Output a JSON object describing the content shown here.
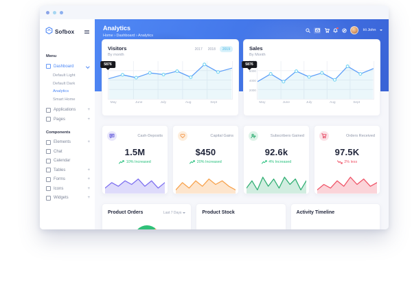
{
  "window": {
    "traffic_dots": [
      "#8aa4e8",
      "#a5d6f2",
      "#8db0ef"
    ]
  },
  "sidebar": {
    "logo_text": "Sofbox",
    "menu_label": "Menu",
    "components_label": "Components",
    "menu_items": [
      {
        "label": "Dashboard",
        "icon": "home-icon",
        "active": true,
        "expanded": true,
        "children": [
          {
            "label": "Default Light"
          },
          {
            "label": "Default Dark"
          },
          {
            "label": "Analytics",
            "active": true
          },
          {
            "label": "Smart Home"
          }
        ]
      },
      {
        "label": "Applications",
        "icon": "grid-icon",
        "plus": "+"
      },
      {
        "label": "Pages",
        "icon": "file-icon",
        "plus": "+"
      }
    ],
    "component_items": [
      {
        "label": "Elements",
        "icon": "box-icon",
        "plus": "+"
      },
      {
        "label": "Chat",
        "icon": "chat-icon"
      },
      {
        "label": "Calendar",
        "icon": "calendar-icon"
      },
      {
        "label": "Tables",
        "icon": "table-icon",
        "plus": "+"
      },
      {
        "label": "Forms",
        "icon": "form-icon",
        "plus": "+"
      },
      {
        "label": "Icons",
        "icon": "circle-icon",
        "plus": "+"
      },
      {
        "label": "Widgets",
        "icon": "widgets-icon",
        "plus": "+"
      }
    ]
  },
  "header": {
    "title": "Analytics",
    "breadcrumb": "Home › Dashboard › Analytics",
    "user_greeting": "Hi John",
    "accent_blue": "#4478ea"
  },
  "chart_data": [
    {
      "id": "visitors",
      "type": "line",
      "title": "Visitors",
      "subtitle": "By month",
      "categories": [
        "May",
        "June",
        "July",
        "Aug",
        "Sept"
      ],
      "values": [
        4300,
        5100,
        4500,
        5500,
        5150,
        5876,
        4600,
        7300,
        5700,
        6500
      ],
      "ylim": [
        0,
        8000
      ],
      "yticks": [],
      "grid": true,
      "markers": true,
      "tooltip": {
        "index": 5,
        "value": "5876"
      },
      "tabs": [
        "2017",
        "2018",
        "2019"
      ],
      "active_tab": "2019",
      "line_color": "#5b9df8",
      "marker_color": "#6fd3f2",
      "fill_color": "rgba(130,208,230,0.16)"
    },
    {
      "id": "sales",
      "type": "line",
      "title": "Sales",
      "subtitle": "By Month",
      "categories": [
        "May",
        "June",
        "July",
        "Aug",
        "Sept"
      ],
      "values": [
        3700,
        5300,
        3650,
        5876,
        4650,
        5500,
        4050,
        6900,
        5300,
        6400
      ],
      "ylim": [
        0,
        8000
      ],
      "yticks": [
        8000,
        6000,
        4000,
        2000
      ],
      "grid": true,
      "markers": true,
      "tooltip": {
        "index": 3,
        "value": "5876"
      },
      "line_color": "#5b9df8",
      "marker_color": "#6fd3f2",
      "fill_color": "rgba(130,208,230,0.16)"
    },
    {
      "id": "spark-cash",
      "type": "area",
      "values": [
        3,
        6,
        4,
        7,
        5,
        8,
        4,
        7,
        3,
        6
      ],
      "ylim": [
        0,
        10
      ],
      "line_color": "#7c6ef0",
      "fill_color": "rgba(124,110,240,0.25)"
    },
    {
      "id": "spark-gains",
      "type": "area",
      "values": [
        2,
        6,
        3,
        7,
        4,
        8,
        5,
        7,
        4,
        2
      ],
      "ylim": [
        0,
        10
      ],
      "line_color": "#f7a14b",
      "fill_color": "rgba(247,161,75,0.28)"
    },
    {
      "id": "spark-subs",
      "type": "area",
      "values": [
        3,
        7,
        2,
        9,
        4,
        8,
        3,
        9,
        5,
        8,
        2,
        7
      ],
      "ylim": [
        0,
        10
      ],
      "line_color": "#2fae72",
      "fill_color": "rgba(47,174,114,0.22)"
    },
    {
      "id": "spark-orders",
      "type": "area",
      "values": [
        2,
        5,
        3,
        7,
        4,
        9,
        5,
        8,
        4,
        6
      ],
      "ylim": [
        0,
        10
      ],
      "line_color": "#ef5266",
      "fill_color": "rgba(239,82,102,0.25)"
    }
  ],
  "stat_cards": [
    {
      "label": "Cash-Deposits",
      "value": "1.5M",
      "trend": "10% Increased",
      "direction": "up",
      "icon": "chat-icon",
      "icon_color": "#6d66dd",
      "icon_bg": "#e9e7fb",
      "trend_color": "#27c07d"
    },
    {
      "label": "Capital Gains",
      "value": "$450",
      "trend": "20% Increased",
      "direction": "up",
      "icon": "heart-icon",
      "icon_color": "#f59d56",
      "icon_bg": "#fdeedd",
      "trend_color": "#27c07d"
    },
    {
      "label": "Subscribers Gained",
      "value": "92.6k",
      "trend": "4% Increased",
      "direction": "up",
      "icon": "user-plus-icon",
      "icon_color": "#2fae72",
      "icon_bg": "#def3e8",
      "trend_color": "#27c07d"
    },
    {
      "label": "Orders Received",
      "value": "97.5K",
      "trend": "2% less",
      "direction": "down",
      "icon": "cart-icon",
      "icon_color": "#e8566e",
      "icon_bg": "#fbe2e7",
      "trend_color": "#ef5266"
    }
  ],
  "bottom_cards": {
    "orders": {
      "title": "Product Orders",
      "filter": "Last 7 Days",
      "donut_colors": [
        "#2fc078",
        "#f7a14b",
        "#ef5266"
      ]
    },
    "stock": {
      "title": "Product Stock"
    },
    "activity": {
      "title": "Activity Timeline"
    }
  }
}
